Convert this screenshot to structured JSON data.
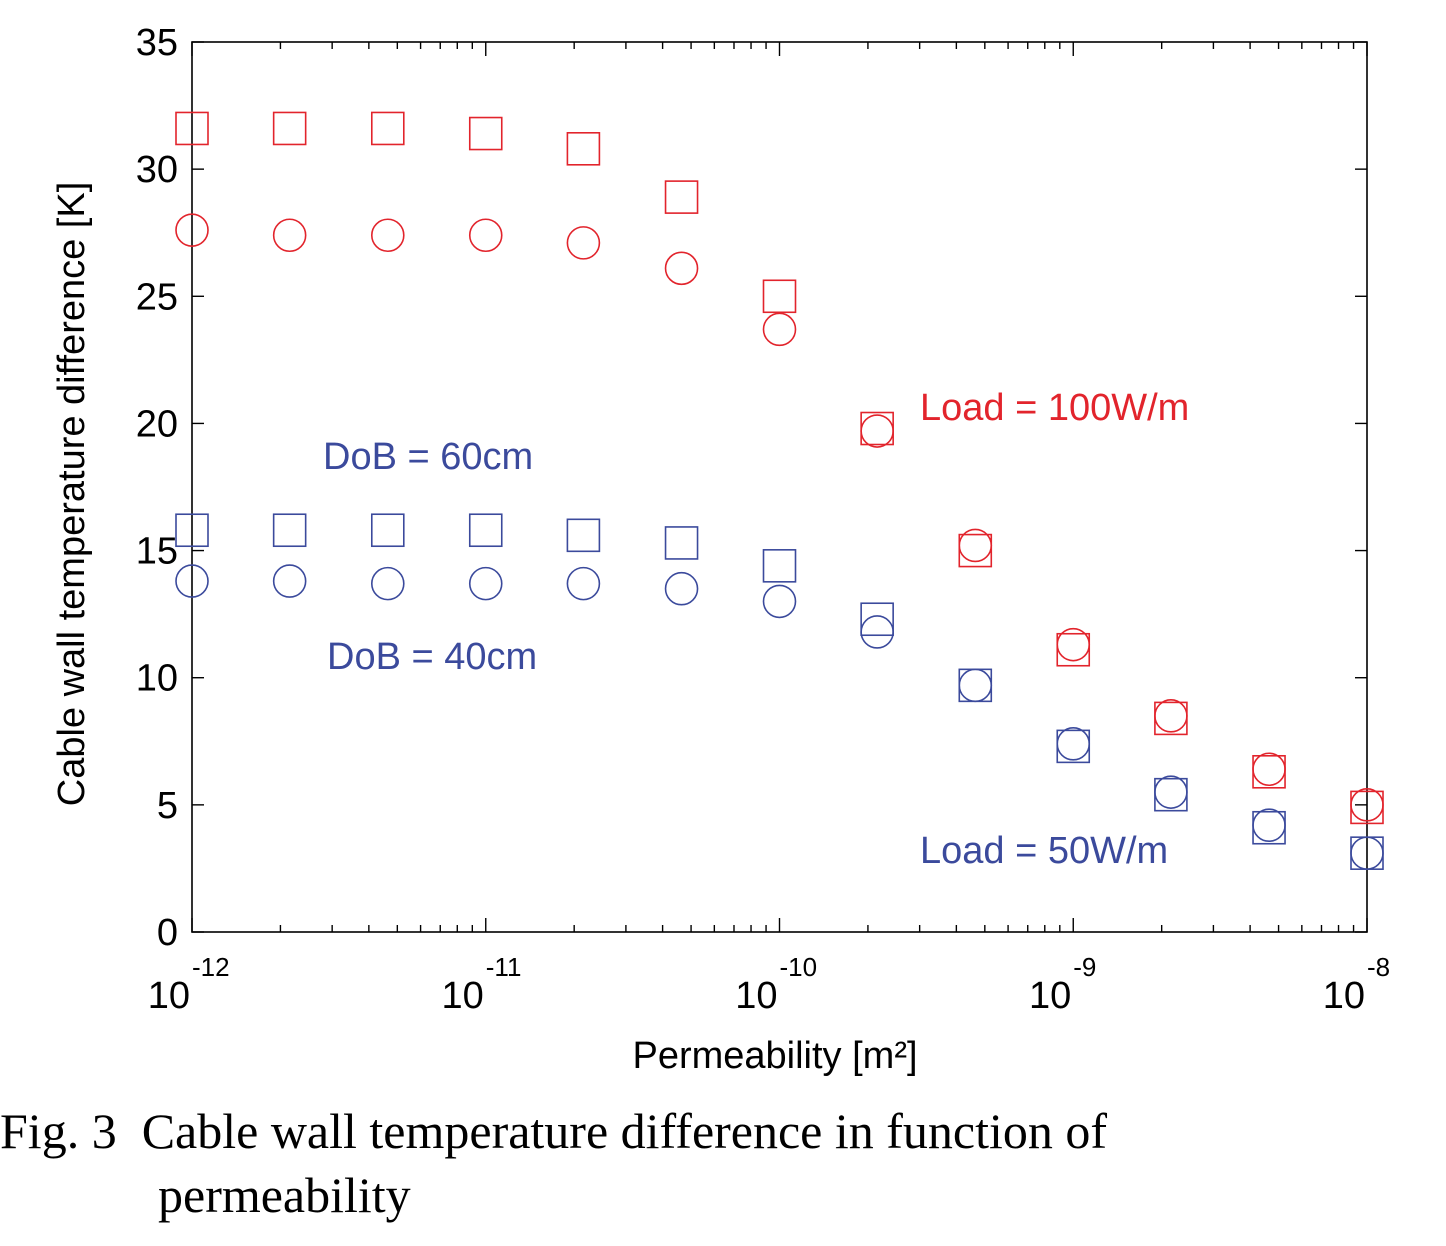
{
  "chart_data": {
    "type": "scatter",
    "xlabel": "Permeability [m²]",
    "ylabel": "Cable wall temperature difference [K]",
    "x_scale": "log",
    "xlim": [
      1e-12,
      1e-08
    ],
    "ylim": [
      0,
      35
    ],
    "x_ticks": [
      {
        "base": "10",
        "exp": "-12",
        "value": 1e-12
      },
      {
        "base": "10",
        "exp": "-11",
        "value": 1e-11
      },
      {
        "base": "10",
        "exp": "-10",
        "value": 1e-10
      },
      {
        "base": "10",
        "exp": "-9",
        "value": 1e-09
      },
      {
        "base": "10",
        "exp": "-8",
        "value": 1e-08
      }
    ],
    "y_ticks": [
      "0",
      "5",
      "10",
      "15",
      "20",
      "25",
      "30",
      "35"
    ],
    "x": [
      1e-12,
      2.15e-12,
      4.64e-12,
      1e-11,
      2.15e-11,
      4.64e-11,
      1e-10,
      2.15e-10,
      4.64e-10,
      1e-09,
      2.15e-09,
      4.64e-09,
      1e-08
    ],
    "series": [
      {
        "marker": "square",
        "color": "#e2242c",
        "values": [
          31.6,
          31.6,
          31.6,
          31.4,
          30.8,
          28.9,
          25.0,
          19.8,
          15.0,
          11.1,
          8.4,
          6.3,
          4.9
        ]
      },
      {
        "marker": "circle",
        "color": "#e2242c",
        "values": [
          27.6,
          27.4,
          27.4,
          27.4,
          27.1,
          26.1,
          23.7,
          19.7,
          15.2,
          11.3,
          8.5,
          6.4,
          5.0
        ]
      },
      {
        "marker": "square",
        "color": "#3b4a9c",
        "values": [
          15.8,
          15.8,
          15.8,
          15.8,
          15.6,
          15.3,
          14.4,
          12.3,
          9.7,
          7.3,
          5.4,
          4.1,
          3.1
        ]
      },
      {
        "marker": "circle",
        "color": "#3b4a9c",
        "values": [
          13.8,
          13.8,
          13.7,
          13.7,
          13.7,
          13.5,
          13.0,
          11.8,
          9.7,
          7.4,
          5.5,
          4.2,
          3.1
        ]
      }
    ],
    "annotations": [
      {
        "text": "Load = 100W/m",
        "color": "#e2242c"
      },
      {
        "text": "DoB = 60cm",
        "color": "#3b4a9c"
      },
      {
        "text": "DoB = 40cm",
        "color": "#3b4a9c"
      },
      {
        "text": "Load = 50W/m",
        "color": "#3b4a9c"
      }
    ],
    "grid": false
  },
  "caption": {
    "line1": "Fig. 3  Cable wall temperature difference in function of",
    "line2": "permeability"
  }
}
